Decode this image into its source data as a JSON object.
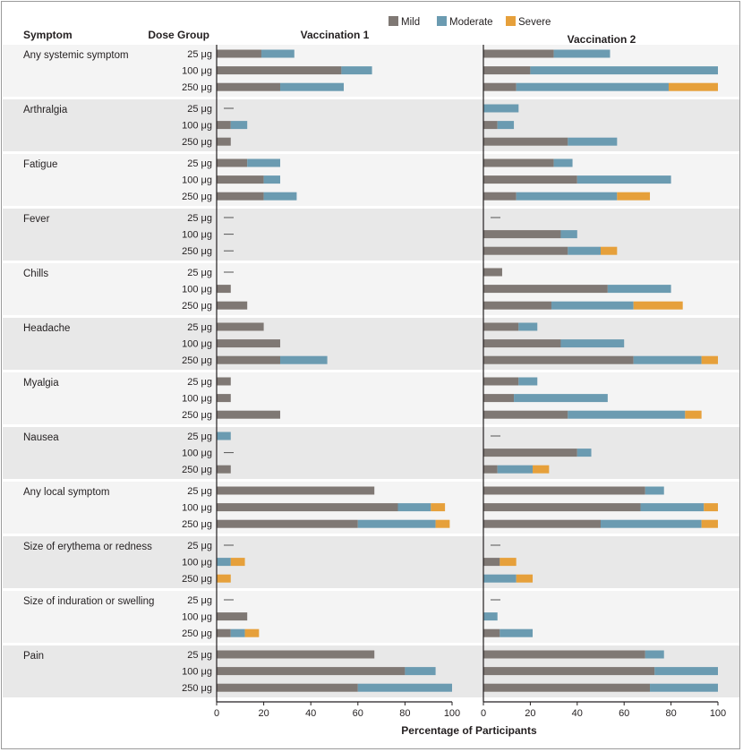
{
  "headers": {
    "symptom": "Symptom",
    "dose_group": "Dose Group",
    "panel1": "Vaccination 1",
    "panel2": "Vaccination 2"
  },
  "colors": {
    "mild": "#7f7874",
    "moderate": "#6b9bb1",
    "severe": "#e6a03b",
    "band": "#e8e8e8",
    "page": "#f4f4f4"
  },
  "chart_data": {
    "type": "bar",
    "orientation": "horizontal",
    "stacked": true,
    "xlabel": "Percentage of Participants",
    "xlim": [
      0,
      100
    ],
    "xticks": [
      0,
      20,
      40,
      60,
      80,
      100
    ],
    "grid": false,
    "legend": {
      "position": "top-right",
      "entries": [
        "Mild",
        "Moderate",
        "Severe"
      ]
    },
    "stack_order": [
      "Mild",
      "Moderate",
      "Severe"
    ],
    "doses": [
      "25 μg",
      "100 μg",
      "250 μg"
    ],
    "symptoms": [
      {
        "name": "Any systemic symptom",
        "vaccination1": [
          [
            19,
            14,
            0
          ],
          [
            53,
            13,
            0
          ],
          [
            27,
            27,
            0
          ]
        ],
        "vaccination2": [
          [
            30,
            24,
            0
          ],
          [
            20,
            80,
            0
          ],
          [
            14,
            65,
            21
          ]
        ]
      },
      {
        "name": "Arthralgia",
        "vaccination1": [
          [
            0,
            0,
            0
          ],
          [
            6,
            7,
            0
          ],
          [
            6,
            0,
            0
          ]
        ],
        "vaccination2": [
          [
            0,
            15,
            0
          ],
          [
            6,
            7,
            0
          ],
          [
            36,
            21,
            0
          ]
        ]
      },
      {
        "name": "Fatigue",
        "vaccination1": [
          [
            13,
            14,
            0
          ],
          [
            20,
            7,
            0
          ],
          [
            20,
            14,
            0
          ]
        ],
        "vaccination2": [
          [
            30,
            8,
            0
          ],
          [
            40,
            40,
            0
          ],
          [
            14,
            43,
            14
          ]
        ]
      },
      {
        "name": "Fever",
        "vaccination1": [
          [
            0,
            0,
            0
          ],
          [
            0,
            0,
            0
          ],
          [
            0,
            0,
            0
          ]
        ],
        "vaccination2": [
          [
            0,
            0,
            0
          ],
          [
            33,
            7,
            0
          ],
          [
            36,
            14,
            7
          ]
        ]
      },
      {
        "name": "Chills",
        "vaccination1": [
          [
            0,
            0,
            0
          ],
          [
            6,
            0,
            0
          ],
          [
            13,
            0,
            0
          ]
        ],
        "vaccination2": [
          [
            8,
            0,
            0
          ],
          [
            53,
            27,
            0
          ],
          [
            29,
            35,
            21
          ]
        ]
      },
      {
        "name": "Headache",
        "vaccination1": [
          [
            20,
            0,
            0
          ],
          [
            27,
            0,
            0
          ],
          [
            27,
            20,
            0
          ]
        ],
        "vaccination2": [
          [
            15,
            8,
            0
          ],
          [
            33,
            27,
            0
          ],
          [
            64,
            29,
            7
          ]
        ]
      },
      {
        "name": "Myalgia",
        "vaccination1": [
          [
            6,
            0,
            0
          ],
          [
            6,
            0,
            0
          ],
          [
            27,
            0,
            0
          ]
        ],
        "vaccination2": [
          [
            15,
            8,
            0
          ],
          [
            13,
            40,
            0
          ],
          [
            36,
            50,
            7
          ]
        ]
      },
      {
        "name": "Nausea",
        "vaccination1": [
          [
            0,
            6,
            0
          ],
          [
            0,
            0,
            0
          ],
          [
            6,
            0,
            0
          ]
        ],
        "vaccination2": [
          [
            0,
            0,
            0
          ],
          [
            40,
            6,
            0
          ],
          [
            6,
            15,
            7
          ]
        ]
      },
      {
        "name": "Any local symptom",
        "vaccination1": [
          [
            67,
            0,
            0
          ],
          [
            77,
            14,
            6
          ],
          [
            60,
            33,
            6
          ]
        ],
        "vaccination2": [
          [
            69,
            8,
            0
          ],
          [
            67,
            27,
            6
          ],
          [
            50,
            43,
            7
          ]
        ]
      },
      {
        "name": "Size of erythema or redness",
        "vaccination1": [
          [
            0,
            0,
            0
          ],
          [
            0,
            6,
            6
          ],
          [
            0,
            0,
            6
          ]
        ],
        "vaccination2": [
          [
            0,
            0,
            0
          ],
          [
            7,
            0,
            7
          ],
          [
            0,
            14,
            7
          ]
        ]
      },
      {
        "name": "Size of induration or swelling",
        "vaccination1": [
          [
            0,
            0,
            0
          ],
          [
            13,
            0,
            0
          ],
          [
            6,
            6,
            6
          ]
        ],
        "vaccination2": [
          [
            0,
            0,
            0
          ],
          [
            0,
            6,
            0
          ],
          [
            7,
            14,
            0
          ]
        ]
      },
      {
        "name": "Pain",
        "vaccination1": [
          [
            67,
            0,
            0
          ],
          [
            80,
            13,
            0
          ],
          [
            60,
            40,
            0
          ]
        ],
        "vaccination2": [
          [
            69,
            8,
            0
          ],
          [
            73,
            27,
            0
          ],
          [
            71,
            29,
            0
          ]
        ]
      }
    ]
  }
}
